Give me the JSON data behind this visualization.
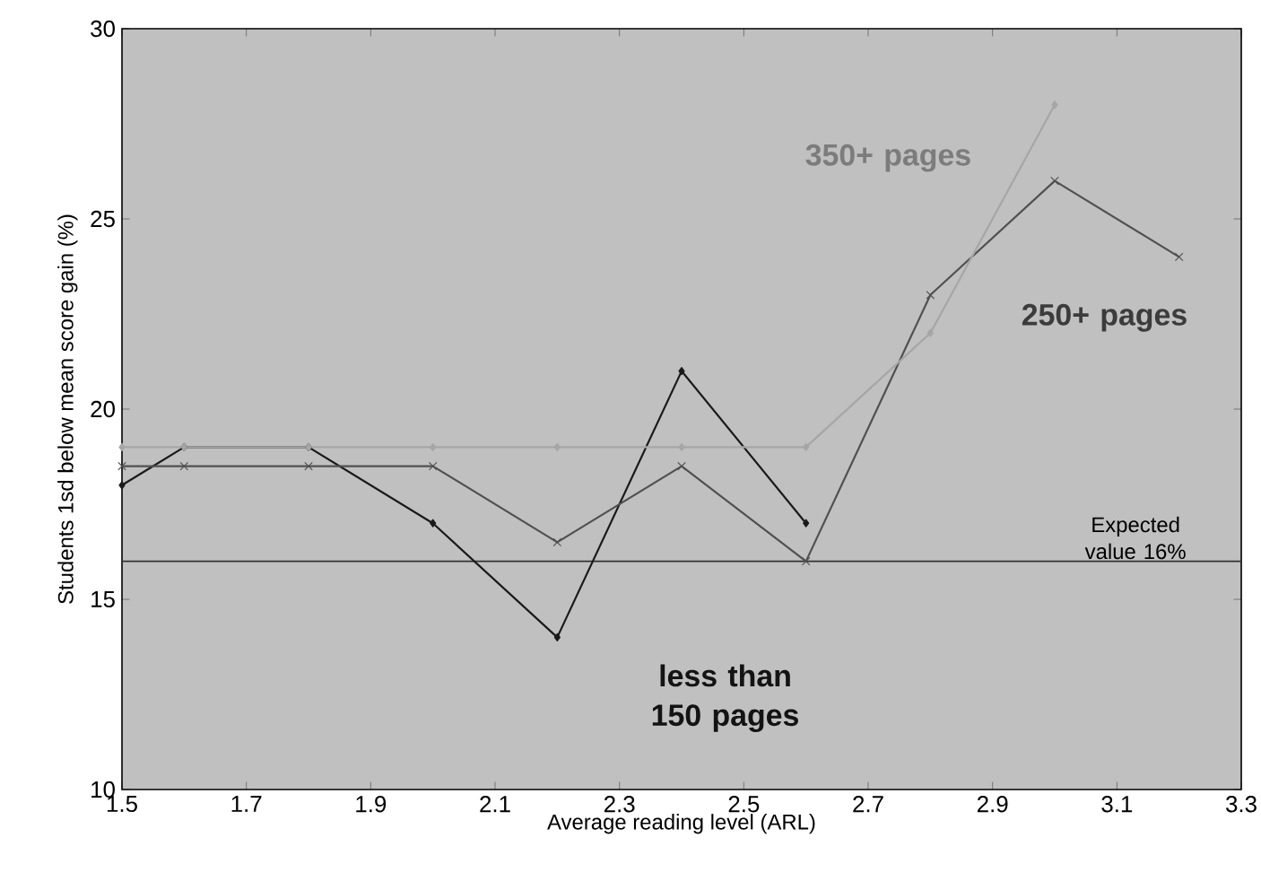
{
  "chart_data": {
    "type": "line",
    "xlabel": "Average reading level (ARL)",
    "ylabel": "Students 1sd below mean score gain (%)",
    "xlim": [
      1.5,
      3.3
    ],
    "xticks": [
      1.5,
      1.7,
      1.9,
      2.1,
      2.3,
      2.5,
      2.7,
      2.9,
      3.1,
      3.3
    ],
    "ylim": [
      10,
      30
    ],
    "yticks": [
      10,
      15,
      20,
      25,
      30
    ],
    "grid": false,
    "series": [
      {
        "name": "less than 150 pages",
        "color": "#1a1a1a",
        "marker": "diamond",
        "x": [
          1.5,
          1.6,
          1.8,
          2.0,
          2.2,
          2.4,
          2.6
        ],
        "values": [
          18,
          19,
          19,
          17,
          14,
          21,
          17
        ]
      },
      {
        "name": "250+ pages",
        "color": "#505050",
        "marker": "cross",
        "x": [
          1.5,
          1.6,
          1.8,
          2.0,
          2.2,
          2.4,
          2.6,
          2.8,
          3.0,
          3.2
        ],
        "values": [
          18.5,
          18.5,
          18.5,
          18.5,
          16.5,
          18.5,
          16,
          23,
          26,
          24
        ]
      },
      {
        "name": "350+ pages",
        "color": "#a6a6a6",
        "marker": "diamond",
        "x": [
          1.5,
          1.6,
          1.8,
          2.0,
          2.2,
          2.4,
          2.6,
          2.8,
          3.0
        ],
        "values": [
          19,
          19,
          19,
          19,
          19,
          19,
          19,
          22,
          28
        ]
      }
    ],
    "ref_lines": [
      {
        "axis": "y",
        "value": 16,
        "label": "Expected value 16%",
        "color": "#333333",
        "line_style": "solid"
      }
    ]
  }
}
